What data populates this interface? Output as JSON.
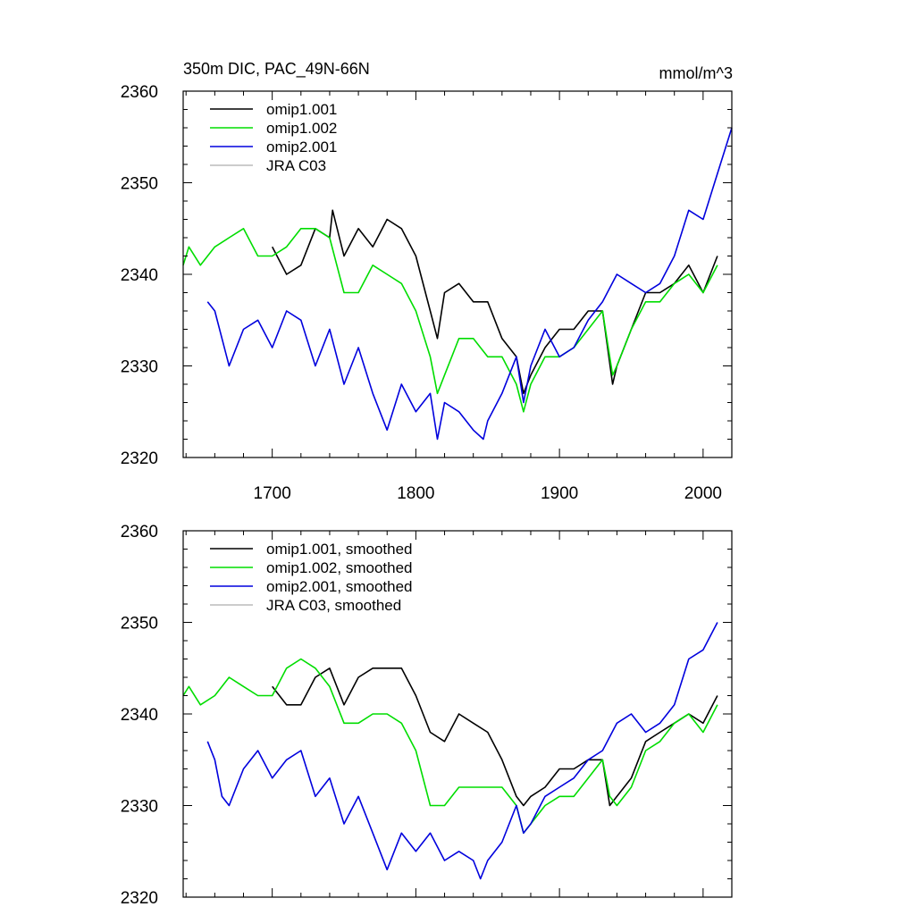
{
  "chart_data": [
    {
      "type": "line",
      "title": "350m DIC, PAC_49N-66N",
      "units": "mmol/m^3",
      "xlim": [
        1638,
        2020
      ],
      "ylim": [
        2320,
        2360
      ],
      "xticks": [
        1700,
        1800,
        1900,
        2000
      ],
      "yticks": [
        2320,
        2330,
        2340,
        2350,
        2360
      ],
      "grid": false,
      "legend_placement": "top-left",
      "series": [
        {
          "name": "omip1.001",
          "color": "#000000",
          "x": [
            1700,
            1710,
            1720,
            1730,
            1740,
            1742,
            1750,
            1760,
            1770,
            1780,
            1790,
            1800,
            1810,
            1815,
            1820,
            1830,
            1840,
            1850,
            1860,
            1870,
            1875,
            1880,
            1890,
            1900,
            1910,
            1920,
            1930,
            1937,
            1940,
            1950,
            1960,
            1970,
            1980,
            1990,
            2000,
            2010
          ],
          "y": [
            2343,
            2340,
            2341,
            2345,
            2344,
            2347,
            2342,
            2345,
            2343,
            2346,
            2345,
            2342,
            2336,
            2333,
            2338,
            2339,
            2337,
            2337,
            2333,
            2331,
            2327,
            2329,
            2332,
            2334,
            2334,
            2336,
            2336,
            2328,
            2330,
            2334,
            2338,
            2338,
            2339,
            2341,
            2338,
            2342
          ]
        },
        {
          "name": "omip1.002",
          "color": "#00dd00",
          "x": [
            1638,
            1642,
            1650,
            1660,
            1670,
            1680,
            1690,
            1700,
            1710,
            1720,
            1730,
            1740,
            1750,
            1760,
            1770,
            1780,
            1790,
            1800,
            1810,
            1815,
            1820,
            1830,
            1840,
            1850,
            1860,
            1870,
            1875,
            1880,
            1890,
            1900,
            1910,
            1920,
            1930,
            1937,
            1940,
            1950,
            1960,
            1970,
            1980,
            1990,
            2000,
            2010
          ],
          "y": [
            2341,
            2343,
            2341,
            2343,
            2344,
            2345,
            2342,
            2342,
            2343,
            2345,
            2345,
            2344,
            2338,
            2338,
            2341,
            2340,
            2339,
            2336,
            2331,
            2327,
            2329,
            2333,
            2333,
            2331,
            2331,
            2328,
            2325,
            2328,
            2331,
            2331,
            2332,
            2334,
            2336,
            2329,
            2330,
            2334,
            2337,
            2337,
            2339,
            2340,
            2338,
            2341
          ]
        },
        {
          "name": "omip2.001",
          "color": "#0000dd",
          "x": [
            1655,
            1660,
            1670,
            1680,
            1690,
            1700,
            1710,
            1720,
            1730,
            1740,
            1750,
            1760,
            1770,
            1780,
            1790,
            1800,
            1810,
            1815,
            1820,
            1830,
            1840,
            1847,
            1850,
            1860,
            1870,
            1875,
            1880,
            1890,
            1900,
            1910,
            1920,
            1930,
            1940,
            1950,
            1960,
            1970,
            1980,
            1990,
            2000,
            2010,
            2020
          ],
          "y": [
            2337,
            2336,
            2330,
            2334,
            2335,
            2332,
            2336,
            2335,
            2330,
            2334,
            2328,
            2332,
            2327,
            2323,
            2328,
            2325,
            2327,
            2322,
            2326,
            2325,
            2323,
            2322,
            2324,
            2327,
            2331,
            2326,
            2330,
            2334,
            2331,
            2332,
            2335,
            2337,
            2340,
            2339,
            2338,
            2339,
            2342,
            2347,
            2346,
            2351,
            2356
          ]
        },
        {
          "name": "JRA C03",
          "color": "#bbbbbb",
          "x": [],
          "y": []
        }
      ]
    },
    {
      "type": "line",
      "xlim": [
        1638,
        2020
      ],
      "ylim": [
        2320,
        2360
      ],
      "xticks": [
        1700,
        1800,
        1900,
        2000
      ],
      "yticks": [
        2320,
        2330,
        2340,
        2350,
        2360
      ],
      "grid": false,
      "legend_placement": "top-left",
      "series": [
        {
          "name": "omip1.001, smoothed",
          "color": "#000000",
          "x": [
            1700,
            1710,
            1720,
            1730,
            1740,
            1750,
            1760,
            1770,
            1780,
            1790,
            1800,
            1810,
            1820,
            1830,
            1840,
            1850,
            1860,
            1870,
            1875,
            1880,
            1890,
            1900,
            1910,
            1920,
            1930,
            1935,
            1940,
            1950,
            1960,
            1970,
            1980,
            1990,
            2000,
            2010
          ],
          "y": [
            2343,
            2341,
            2341,
            2344,
            2345,
            2341,
            2344,
            2345,
            2345,
            2345,
            2342,
            2338,
            2337,
            2340,
            2339,
            2338,
            2335,
            2331,
            2330,
            2331,
            2332,
            2334,
            2334,
            2335,
            2335,
            2330,
            2331,
            2333,
            2337,
            2338,
            2339,
            2340,
            2339,
            2342
          ]
        },
        {
          "name": "omip1.002, smoothed",
          "color": "#00dd00",
          "x": [
            1638,
            1642,
            1650,
            1660,
            1670,
            1680,
            1690,
            1700,
            1710,
            1720,
            1730,
            1740,
            1750,
            1760,
            1770,
            1780,
            1790,
            1800,
            1810,
            1820,
            1830,
            1840,
            1850,
            1860,
            1870,
            1875,
            1880,
            1890,
            1900,
            1910,
            1920,
            1930,
            1935,
            1940,
            1950,
            1960,
            1970,
            1980,
            1990,
            2000,
            2010
          ],
          "y": [
            2342,
            2343,
            2341,
            2342,
            2344,
            2343,
            2342,
            2342,
            2345,
            2346,
            2345,
            2343,
            2339,
            2339,
            2340,
            2340,
            2339,
            2336,
            2330,
            2330,
            2332,
            2332,
            2332,
            2332,
            2330,
            2327,
            2328,
            2330,
            2331,
            2331,
            2333,
            2335,
            2331,
            2330,
            2332,
            2336,
            2337,
            2339,
            2340,
            2338,
            2341
          ]
        },
        {
          "name": "omip2.001, smoothed",
          "color": "#0000dd",
          "x": [
            1655,
            1660,
            1665,
            1670,
            1680,
            1690,
            1700,
            1710,
            1720,
            1730,
            1740,
            1750,
            1760,
            1770,
            1780,
            1790,
            1800,
            1810,
            1820,
            1830,
            1840,
            1845,
            1850,
            1860,
            1870,
            1875,
            1880,
            1890,
            1900,
            1910,
            1920,
            1930,
            1940,
            1950,
            1960,
            1970,
            1980,
            1990,
            2000,
            2010
          ],
          "y": [
            2337,
            2335,
            2331,
            2330,
            2334,
            2336,
            2333,
            2335,
            2336,
            2331,
            2333,
            2328,
            2331,
            2327,
            2323,
            2327,
            2325,
            2327,
            2324,
            2325,
            2324,
            2322,
            2324,
            2326,
            2330,
            2327,
            2328,
            2331,
            2332,
            2333,
            2335,
            2336,
            2339,
            2340,
            2338,
            2339,
            2341,
            2346,
            2347,
            2350
          ]
        },
        {
          "name": "JRA C03, smoothed",
          "color": "#bbbbbb",
          "x": [],
          "y": []
        }
      ]
    }
  ]
}
